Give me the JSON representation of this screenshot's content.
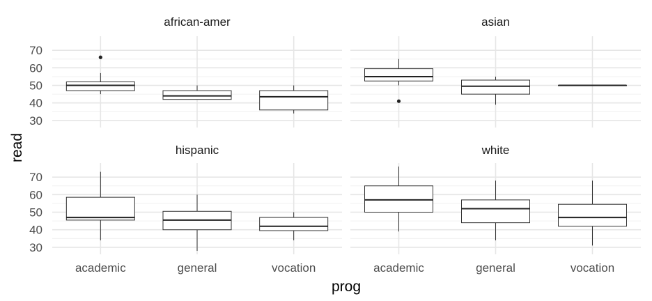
{
  "chart_data": {
    "type": "boxplot",
    "xlabel": "prog",
    "ylabel": "read",
    "categories": [
      "academic",
      "general",
      "vocation"
    ],
    "y_ticks": [
      30,
      40,
      50,
      60,
      70
    ],
    "ylim": [
      26,
      78
    ],
    "grid": true,
    "facets": [
      {
        "name": "african-amer",
        "boxes": [
          {
            "category": "academic",
            "min": 45,
            "q1": 47,
            "median": 50,
            "q3": 52,
            "max": 57,
            "outliers": [
              66
            ]
          },
          {
            "category": "general",
            "min": 42,
            "q1": 42,
            "median": 44,
            "q3": 47,
            "max": 50,
            "outliers": []
          },
          {
            "category": "vocation",
            "min": 34,
            "q1": 36,
            "median": 43.5,
            "q3": 47,
            "max": 50,
            "outliers": []
          }
        ]
      },
      {
        "name": "asian",
        "boxes": [
          {
            "category": "academic",
            "min": 50,
            "q1": 52.5,
            "median": 55,
            "q3": 59.5,
            "max": 65,
            "outliers": [
              41
            ]
          },
          {
            "category": "general",
            "min": 39,
            "q1": 45,
            "median": 49.5,
            "q3": 53,
            "max": 55,
            "outliers": []
          },
          {
            "category": "vocation",
            "min": 50,
            "q1": 50,
            "median": 50,
            "q3": 50,
            "max": 50,
            "outliers": []
          }
        ]
      },
      {
        "name": "hispanic",
        "boxes": [
          {
            "category": "academic",
            "min": 34,
            "q1": 45.5,
            "median": 47,
            "q3": 58.5,
            "max": 73,
            "outliers": []
          },
          {
            "category": "general",
            "min": 28,
            "q1": 40,
            "median": 45.5,
            "q3": 50.5,
            "max": 60,
            "outliers": []
          },
          {
            "category": "vocation",
            "min": 34,
            "q1": 39.5,
            "median": 42,
            "q3": 47,
            "max": 50,
            "outliers": []
          }
        ]
      },
      {
        "name": "white",
        "boxes": [
          {
            "category": "academic",
            "min": 39,
            "q1": 50,
            "median": 57,
            "q3": 65,
            "max": 76,
            "outliers": []
          },
          {
            "category": "general",
            "min": 34,
            "q1": 44,
            "median": 52,
            "q3": 57,
            "max": 68,
            "outliers": []
          },
          {
            "category": "vocation",
            "min": 31,
            "q1": 42,
            "median": 47,
            "q3": 54.5,
            "max": 68,
            "outliers": []
          }
        ]
      }
    ]
  }
}
